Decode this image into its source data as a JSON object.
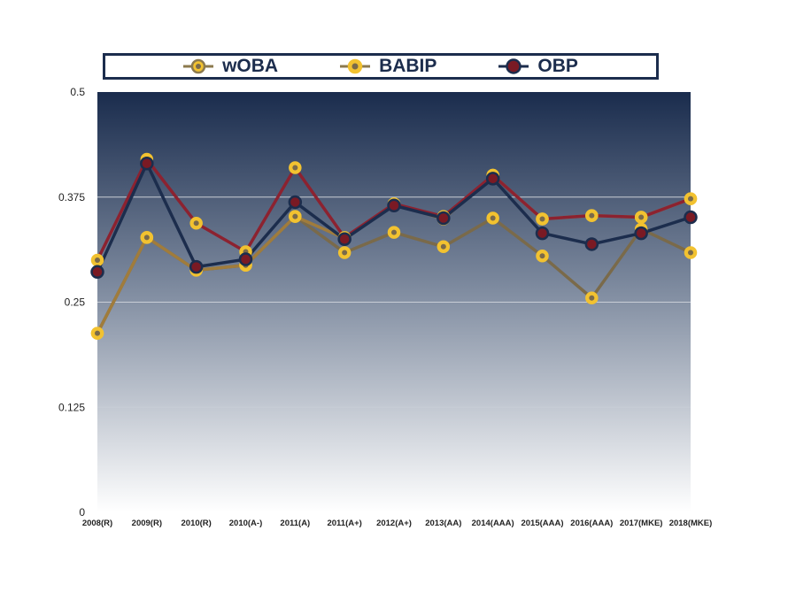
{
  "chart_data": {
    "type": "line",
    "categories": [
      "2008(R)",
      "2009(R)",
      "2010(R)",
      "2010(A-)",
      "2011(A)",
      "2011(A+)",
      "2012(A+)",
      "2013(AA)",
      "2014(AAA)",
      "2015(AAA)",
      "2016(AAA)",
      "2017(MKE)",
      "2018(MKE)"
    ],
    "series": [
      {
        "name": "wOBA",
        "color": "#8c7a4e",
        "line_color": "#a07c3c",
        "marker_fill": "#f2c230",
        "marker_center": "#7a6a4a",
        "values": [
          0.213,
          0.327,
          0.288,
          0.294,
          0.352,
          0.326,
          0.367,
          0.349,
          0.401,
          0.349,
          0.353,
          0.351,
          0.373
        ]
      },
      {
        "name": "BABIP",
        "color": "#f2c230",
        "line_color": "#7a6a4a",
        "marker_fill": "#f2c230",
        "marker_center": "#7a6a4a",
        "values": [
          0.213,
          0.327,
          0.288,
          0.294,
          0.352,
          0.309,
          0.333,
          0.316,
          0.35,
          0.305,
          0.255,
          0.337,
          0.309
        ]
      },
      {
        "name": "OBP",
        "color": "#1c2d4d",
        "line_color": "#1c2d4d",
        "marker_fill": "#7a1a24",
        "marker_center": "#7a1a24",
        "values": [
          0.286,
          0.415,
          0.292,
          0.301,
          0.369,
          0.325,
          0.365,
          0.35,
          0.397,
          0.332,
          0.319,
          0.332,
          0.351
        ]
      },
      {
        "name": "",
        "color": "#8c2230",
        "line_color": "#8c2230",
        "marker_fill": "#f2c230",
        "marker_center": "#7a6a4a",
        "values": [
          0.3,
          0.42,
          0.344,
          0.31,
          0.41,
          0.327,
          0.367,
          0.352,
          0.401,
          0.349,
          0.353,
          0.351,
          0.373
        ]
      }
    ],
    "y_ticks": [
      "0",
      "0.125",
      "0.25",
      "0.375",
      "0.5"
    ],
    "ylim": [
      0,
      0.5
    ],
    "grid": true,
    "legend_position": "top",
    "colors": {
      "navy": "#1c2d4d",
      "maroon": "#8c2230",
      "gold": "#f2c230",
      "tan": "#8c7a4e"
    }
  },
  "legend": [
    {
      "label": "wOBA",
      "icon": "circle-marker-icon"
    },
    {
      "label": "BABIP",
      "icon": "circle-marker-icon"
    },
    {
      "label": "OBP",
      "icon": "circle-marker-icon"
    }
  ]
}
